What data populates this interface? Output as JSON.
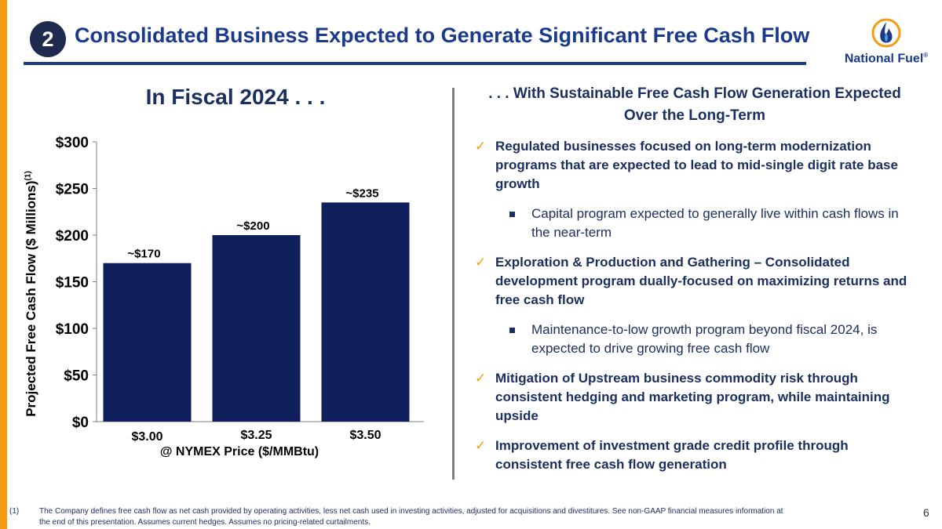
{
  "header": {
    "section_number": "2",
    "title": "Consolidated Business Expected to Generate Significant Free Cash Flow",
    "logo_text": "National Fuel",
    "logo_reg": "®"
  },
  "left_panel": {
    "subtitle": "In Fiscal 2024 . . .",
    "y_axis_title": "Projected Free Cash Flow ($ Millions)",
    "y_axis_title_sup": "(1)",
    "x_axis_title": "@ NYMEX Price ($/MMBtu)"
  },
  "chart_data": {
    "type": "bar",
    "categories": [
      "$3.00",
      "$3.25",
      "$3.50"
    ],
    "values": [
      170,
      200,
      235
    ],
    "data_labels": [
      "~$170",
      "~$200",
      "~$235"
    ],
    "y_ticks": [
      0,
      50,
      100,
      150,
      200,
      250,
      300
    ],
    "y_tick_labels": [
      "$0",
      "$50",
      "$100",
      "$150",
      "$200",
      "$250",
      "$300"
    ],
    "ylim": [
      0,
      300
    ],
    "xlabel": "@ NYMEX Price ($/MMBtu)",
    "ylabel": "Projected Free Cash Flow ($ Millions)",
    "grid": false,
    "bar_color": "#0e1f5b"
  },
  "right_panel": {
    "subtitle_line1": ". . . With Sustainable Free Cash Flow Generation Expected",
    "subtitle_line2": "Over the Long-Term",
    "check_mark": "✓",
    "bullets": [
      {
        "text": "Regulated businesses focused on long-term modernization programs that are expected to lead to mid-single digit rate base growth",
        "sub": "Capital program expected to generally live within cash flows in the near-term"
      },
      {
        "text": "Exploration & Production and Gathering – Consolidated development program dually-focused on maximizing returns and free cash flow",
        "sub": "Maintenance-to-low growth program beyond fiscal 2024, is expected to drive growing free cash flow"
      },
      {
        "text": "Mitigation of Upstream business commodity risk through consistent hedging and marketing program, while maintaining upside"
      },
      {
        "text": "Improvement of investment grade credit profile through consistent free cash flow generation"
      }
    ]
  },
  "footnote": {
    "number": "(1)",
    "text": "The Company defines free cash flow as net cash provided by operating activities, less net cash used in investing activities, adjusted for acquisitions and divestitures. See non-GAAP financial measures information at the end of this presentation. Assumes current hedges. Assumes no pricing-related curtailments."
  },
  "page_number": "6",
  "colors": {
    "accent_orange": "#f39c12",
    "title_blue": "#1b3a8c",
    "navy": "#1f2a4f",
    "text_navy": "#1b2f60"
  }
}
